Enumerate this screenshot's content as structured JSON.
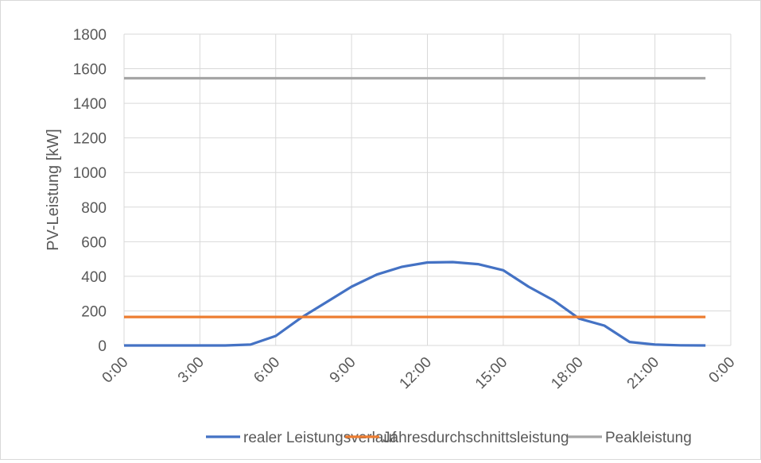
{
  "chart_data": {
    "type": "line",
    "title": "",
    "xlabel": "",
    "ylabel": "PV-Leistung [kW]",
    "ylim": [
      0,
      1800
    ],
    "yticks": [
      0,
      200,
      400,
      600,
      800,
      1000,
      1200,
      1400,
      1600,
      1800
    ],
    "xticks": [
      "0:00",
      "3:00",
      "6:00",
      "9:00",
      "12:00",
      "15:00",
      "18:00",
      "21:00",
      "0:00"
    ],
    "x_hours": [
      0,
      1,
      2,
      3,
      4,
      5,
      6,
      7,
      8,
      9,
      10,
      11,
      12,
      13,
      14,
      15,
      16,
      17,
      18,
      19,
      20,
      21,
      22,
      23
    ],
    "grid": true,
    "legend_position": "bottom",
    "series": [
      {
        "name": "realer Leistungsverlauf",
        "color": "#4472c4",
        "values": [
          0,
          0,
          0,
          0,
          0,
          5,
          55,
          160,
          250,
          340,
          410,
          455,
          480,
          482,
          470,
          435,
          340,
          260,
          155,
          115,
          20,
          5,
          1,
          0
        ]
      },
      {
        "name": "Jahresdurchschnittsleistung",
        "color": "#ed7d31",
        "values": [
          165,
          165,
          165,
          165,
          165,
          165,
          165,
          165,
          165,
          165,
          165,
          165,
          165,
          165,
          165,
          165,
          165,
          165,
          165,
          165,
          165,
          165,
          165,
          165
        ]
      },
      {
        "name": "Peakleistung",
        "color": "#a5a5a5",
        "values": [
          1545,
          1545,
          1545,
          1545,
          1545,
          1545,
          1545,
          1545,
          1545,
          1545,
          1545,
          1545,
          1545,
          1545,
          1545,
          1545,
          1545,
          1545,
          1545,
          1545,
          1545,
          1545,
          1545,
          1545
        ]
      }
    ]
  }
}
